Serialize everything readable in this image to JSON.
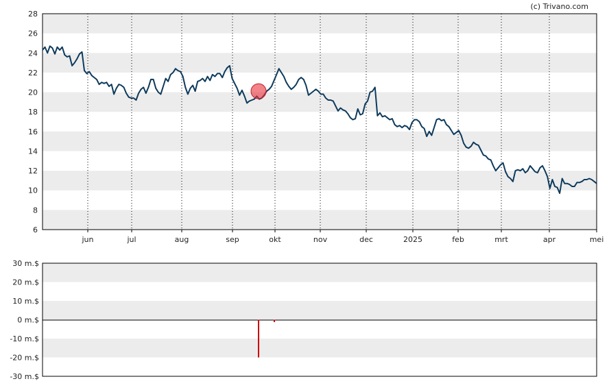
{
  "credit": "(c) Trivano.com",
  "chart_data": [
    {
      "type": "line",
      "y_ticks": [
        "6",
        "8",
        "10",
        "12",
        "14",
        "16",
        "18",
        "20",
        "22",
        "24",
        "26",
        "28"
      ],
      "ylim": [
        6,
        28
      ],
      "x_tick_labels": [
        "jun",
        "jul",
        "aug",
        "sep",
        "okt",
        "nov",
        "dec",
        "2025",
        "feb",
        "mrt",
        "apr",
        "mei"
      ],
      "grid": "alternating horizontal bands, dotted vertical lines",
      "line_color": "#0d3a5c",
      "highlight_color": "#e8303a",
      "series": [
        {
          "values": [
            24.3,
            24.6,
            24.0,
            24.7,
            24.5,
            23.9,
            24.6,
            24.3,
            24.6,
            23.8,
            23.6,
            23.7,
            22.7,
            23.0,
            23.4,
            23.9,
            24.1,
            22.2,
            21.9,
            22.1,
            21.7,
            21.5,
            21.3,
            20.8,
            21.0,
            20.9,
            21.0,
            20.6,
            20.8,
            19.8,
            20.4,
            20.8,
            20.7,
            20.5,
            19.9,
            19.5,
            19.4,
            19.4,
            19.2,
            19.9,
            20.3,
            20.5,
            19.9,
            20.5,
            21.3,
            21.3,
            20.4,
            20.0,
            19.8,
            20.6,
            21.4,
            21.1,
            21.8,
            22.0,
            22.4,
            22.2,
            22.1,
            21.6,
            20.5,
            19.8,
            20.4,
            20.7,
            20.1,
            21.1,
            21.2,
            21.4,
            21.1,
            21.6,
            21.2,
            21.8,
            21.6,
            21.9,
            21.9,
            21.5,
            22.1,
            22.5,
            22.7,
            21.4,
            20.9,
            20.4,
            19.7,
            20.2,
            19.6,
            18.9,
            19.1,
            19.2,
            19.3,
            19.6,
            19.3,
            19.4,
            19.7,
            20.1,
            20.3,
            20.6,
            21.2,
            21.8,
            22.4,
            22.0,
            21.6,
            21.0,
            20.6,
            20.3,
            20.5,
            20.8,
            21.3,
            21.5,
            21.3,
            20.7,
            19.7,
            19.9,
            20.1,
            20.3,
            20.1,
            19.8,
            19.8,
            19.4,
            19.2,
            19.2,
            19.1,
            18.6,
            18.1,
            18.4,
            18.2,
            18.1,
            17.8,
            17.4,
            17.2,
            17.3,
            18.3,
            17.7,
            17.8,
            18.8,
            19.1,
            20.0,
            20.1,
            20.5,
            17.6,
            17.9,
            17.5,
            17.6,
            17.4,
            17.2,
            17.3,
            16.7,
            16.5,
            16.6,
            16.4,
            16.6,
            16.5,
            16.2,
            16.9,
            17.2,
            17.2,
            17.0,
            16.5,
            16.3,
            15.5,
            16.0,
            15.6,
            16.4,
            17.2,
            17.3,
            17.1,
            17.2,
            16.7,
            16.5,
            16.1,
            15.7,
            15.9,
            16.1,
            15.6,
            14.8,
            14.4,
            14.3,
            14.5,
            14.9,
            14.7,
            14.6,
            14.1,
            13.6,
            13.5,
            13.2,
            13.1,
            12.5,
            12.0,
            12.3,
            12.6,
            12.8,
            11.9,
            11.4,
            11.2,
            10.9,
            12.0,
            12.1,
            12.0,
            12.2,
            11.8,
            12.0,
            12.5,
            12.2,
            11.9,
            11.8,
            12.3,
            12.5,
            12.0,
            11.4,
            10.2,
            11.1,
            10.4,
            10.3,
            9.7,
            11.2,
            10.7,
            10.7,
            10.6,
            10.4,
            10.4,
            10.8,
            10.8,
            10.9,
            11.1,
            11.1,
            11.2,
            11.1,
            10.9,
            10.7
          ]
        }
      ],
      "highlight": {
        "label": "marker",
        "value": 20.1
      }
    },
    {
      "type": "bar",
      "y_ticks": [
        "30 m.$",
        "20 m.$",
        "10 m.$",
        "0 m.$",
        "-10 m.$",
        "-20 m.$",
        "-30 m.$"
      ],
      "ylim": [
        -30,
        30
      ],
      "bar_color": "#cc0000",
      "bars": [
        {
          "position": "late sep",
          "value": -20
        },
        {
          "position": "early okt",
          "value": -0.5
        }
      ]
    }
  ]
}
